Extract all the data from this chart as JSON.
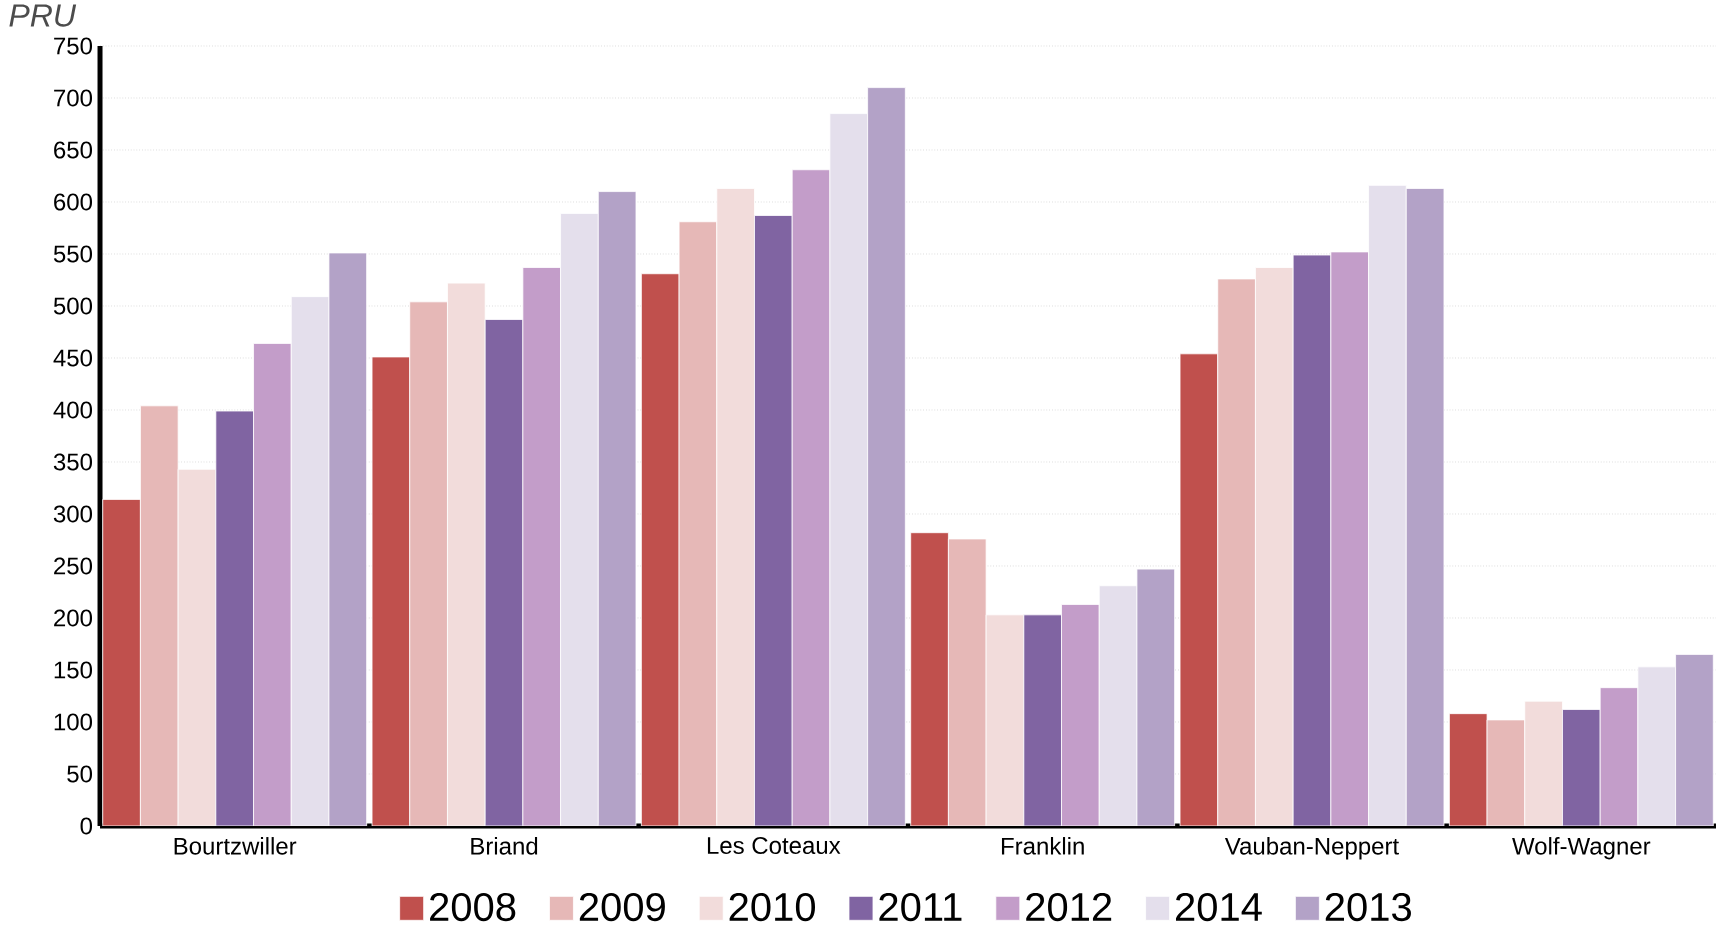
{
  "chart_data": {
    "type": "bar",
    "title": "PRU",
    "categories": [
      "Bourtzwiller",
      "Briand",
      "Les Coteaux",
      "Franklin",
      "Vauban-Neppert",
      "Wolf-Wagner"
    ],
    "series": [
      {
        "name": "2008",
        "color": "#c0504d",
        "values": [
          314,
          451,
          531,
          282,
          454,
          108
        ]
      },
      {
        "name": "2009",
        "color": "#e6b8b7",
        "values": [
          404,
          504,
          581,
          276,
          526,
          102
        ]
      },
      {
        "name": "2010",
        "color": "#f2dcdb",
        "values": [
          343,
          522,
          613,
          203,
          537,
          120
        ]
      },
      {
        "name": "2011",
        "color": "#8064a2",
        "values": [
          399,
          487,
          587,
          203,
          549,
          112
        ]
      },
      {
        "name": "2012",
        "color": "#c39dc9",
        "values": [
          464,
          537,
          631,
          213,
          552,
          133
        ]
      },
      {
        "name": "2014",
        "color": "#e4dfec",
        "values": [
          509,
          589,
          685,
          231,
          616,
          153
        ]
      },
      {
        "name": "2013",
        "color": "#b3a2c7",
        "values": [
          551,
          610,
          710,
          247,
          613,
          165
        ]
      }
    ],
    "ylim": [
      0,
      750
    ],
    "yticks": [
      0,
      50,
      100,
      150,
      200,
      250,
      300,
      350,
      400,
      450,
      500,
      550,
      600,
      650,
      700,
      750
    ],
    "grid": "y",
    "legend": "bottom"
  }
}
